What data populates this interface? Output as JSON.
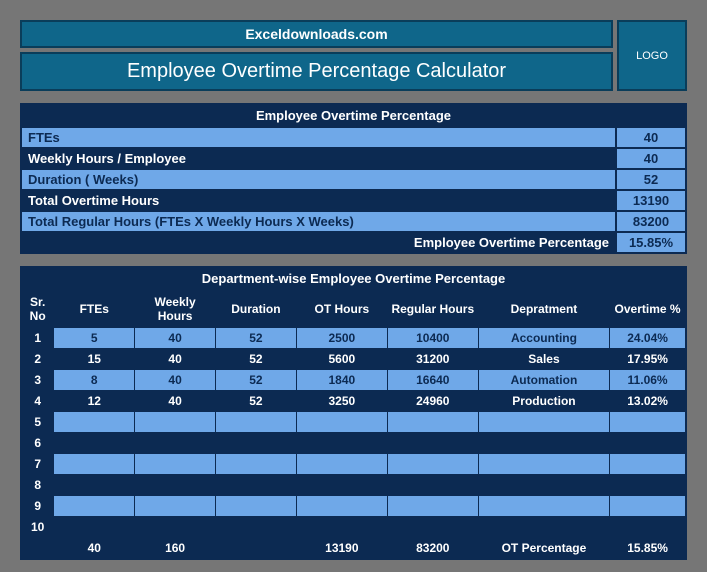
{
  "header": {
    "site": "Exceldownloads.com",
    "title": "Employee Overtime Percentage Calculator",
    "logo": "LOGO"
  },
  "summary": {
    "section_title": "Employee Overtime Percentage",
    "rows": [
      {
        "label": "FTEs",
        "value": "40",
        "label_bg": "#6fa8e8",
        "label_fg": "#0c2a52",
        "val_bg": "#6fa8e8",
        "val_fg": "#0c2a52"
      },
      {
        "label": "Weekly Hours / Employee",
        "value": "40",
        "label_bg": "#0c2a52",
        "label_fg": "#ffffff",
        "val_bg": "#6fa8e8",
        "val_fg": "#0c2a52"
      },
      {
        "label": "Duration ( Weeks)",
        "value": "52",
        "label_bg": "#6fa8e8",
        "label_fg": "#0c2a52",
        "val_bg": "#6fa8e8",
        "val_fg": "#0c2a52"
      },
      {
        "label": "Total Overtime Hours",
        "value": "13190",
        "label_bg": "#0c2a52",
        "label_fg": "#ffffff",
        "val_bg": "#6fa8e8",
        "val_fg": "#0c2a52"
      },
      {
        "label": "Total Regular Hours (FTEs X Weekly Hours X  Weeks)",
        "value": "83200",
        "label_bg": "#6fa8e8",
        "label_fg": "#0c2a52",
        "val_bg": "#6fa8e8",
        "val_fg": "#0c2a52"
      }
    ],
    "footer_label": "Employee Overtime Percentage",
    "footer_value": "15.85%"
  },
  "dept": {
    "section_title": "Department-wise Employee Overtime Percentage",
    "headers": [
      "Sr. No",
      "FTEs",
      "Weekly Hours",
      "Duration",
      "OT Hours",
      "Regular Hours",
      "Depratment",
      "Overtime %"
    ],
    "rows": [
      {
        "sr": "1",
        "ftes": "5",
        "wh": "40",
        "dur": "52",
        "ot": "2500",
        "reg": "10400",
        "dept": "Accounting",
        "pct": "24.04%"
      },
      {
        "sr": "2",
        "ftes": "15",
        "wh": "40",
        "dur": "52",
        "ot": "5600",
        "reg": "31200",
        "dept": "Sales",
        "pct": "17.95%"
      },
      {
        "sr": "3",
        "ftes": "8",
        "wh": "40",
        "dur": "52",
        "ot": "1840",
        "reg": "16640",
        "dept": "Automation",
        "pct": "11.06%"
      },
      {
        "sr": "4",
        "ftes": "12",
        "wh": "40",
        "dur": "52",
        "ot": "3250",
        "reg": "24960",
        "dept": "Production",
        "pct": "13.02%"
      },
      {
        "sr": "5",
        "ftes": "",
        "wh": "",
        "dur": "",
        "ot": "",
        "reg": "",
        "dept": "",
        "pct": ""
      },
      {
        "sr": "6",
        "ftes": "",
        "wh": "",
        "dur": "",
        "ot": "",
        "reg": "",
        "dept": "",
        "pct": ""
      },
      {
        "sr": "7",
        "ftes": "",
        "wh": "",
        "dur": "",
        "ot": "",
        "reg": "",
        "dept": "",
        "pct": ""
      },
      {
        "sr": "8",
        "ftes": "",
        "wh": "",
        "dur": "",
        "ot": "",
        "reg": "",
        "dept": "",
        "pct": ""
      },
      {
        "sr": "9",
        "ftes": "",
        "wh": "",
        "dur": "",
        "ot": "",
        "reg": "",
        "dept": "",
        "pct": ""
      },
      {
        "sr": "10",
        "ftes": "",
        "wh": "",
        "dur": "",
        "ot": "",
        "reg": "",
        "dept": "",
        "pct": ""
      }
    ],
    "totals": {
      "ftes": "40",
      "wh": "160",
      "dur": "",
      "ot": "13190",
      "reg": "83200",
      "dept_label": "OT Percentage",
      "pct": "15.85%"
    }
  },
  "colors": {
    "canvas": "#767676",
    "teal": "#0f668a",
    "teal_border": "#0a3d5a",
    "navy": "#0c2a52",
    "light_blue": "#6fa8e8",
    "white": "#ffffff"
  }
}
